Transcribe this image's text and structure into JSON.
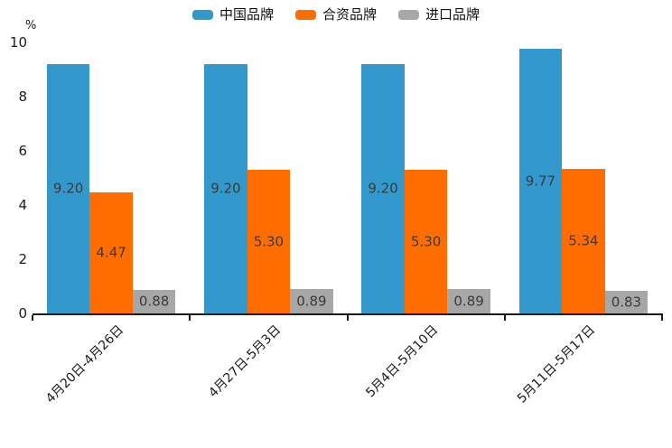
{
  "chart_data": {
    "type": "bar",
    "title": "",
    "ylabel": "%",
    "xlabel": "",
    "ylim": [
      0,
      10.3
    ],
    "yticks": [
      0,
      2,
      4,
      6,
      8,
      10
    ],
    "grid": false,
    "legend_position": "top-center",
    "categories": [
      "4月20日-4月26日",
      "4月27日-5月3日",
      "5月4日-5月10日",
      "5月11日-5月17日"
    ],
    "series": [
      {
        "name": "中国品牌",
        "color": "#3399CC",
        "values": [
          9.2,
          9.2,
          9.2,
          9.77
        ],
        "labels": [
          "9.20",
          "9.20",
          "9.20",
          "9.77"
        ]
      },
      {
        "name": "合资品牌",
        "color": "#FF6D00",
        "values": [
          4.47,
          5.3,
          5.3,
          5.34
        ],
        "labels": [
          "4.47",
          "5.30",
          "5.30",
          "5.34"
        ]
      },
      {
        "name": "进口品牌",
        "color": "#A7A7A7",
        "values": [
          0.88,
          0.89,
          0.89,
          0.83
        ],
        "labels": [
          "0.88",
          "0.89",
          "0.89",
          "0.83"
        ]
      }
    ],
    "axis_color": "#1a1a1a",
    "value_label_color": "#3a3a3a"
  }
}
